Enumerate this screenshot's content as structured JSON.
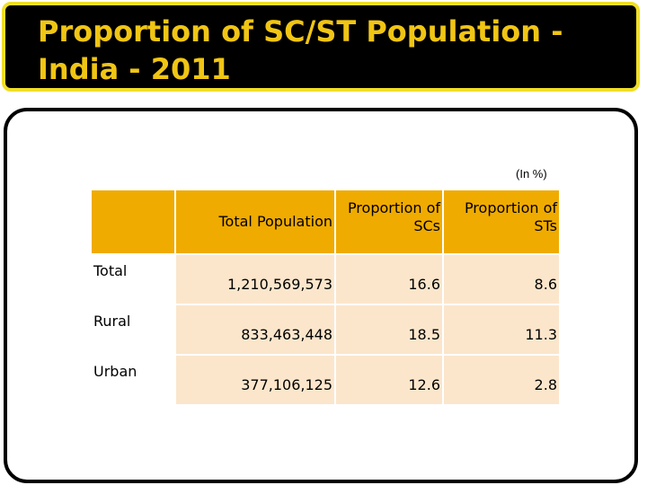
{
  "slide": {
    "title": "Proportion of SC/ST Population - India - 2011",
    "unit_note": "(In %)"
  },
  "table": {
    "columns": [
      "",
      "Total Population",
      "Proportion of SCs",
      "Proportion of STs"
    ],
    "rows": [
      {
        "label": "Total",
        "population": "1,210,569,573",
        "sc": "16.6",
        "st": "8.6"
      },
      {
        "label": "Rural",
        "population": "833,463,448",
        "sc": "18.5",
        "st": "11.3"
      },
      {
        "label": "Urban",
        "population": "377,106,125",
        "sc": "12.6",
        "st": "2.8"
      }
    ]
  },
  "colors": {
    "title_text": "#f0c514",
    "title_border": "#f0df27",
    "header_fill": "#f0ab00",
    "cell_fill": "#fbe6cc"
  }
}
